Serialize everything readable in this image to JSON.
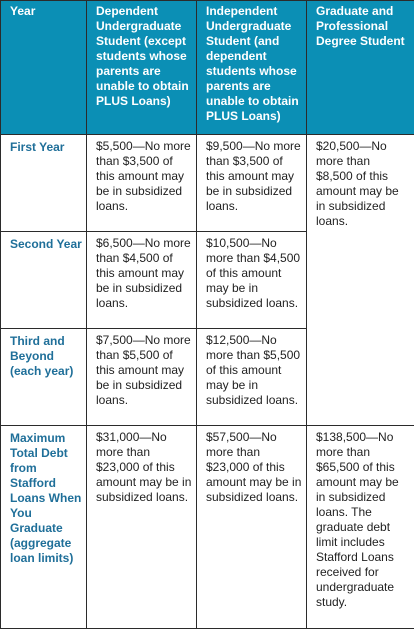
{
  "headers": {
    "year": "Year",
    "dependent": "Dependent Undergraduate Student (except students whose parents are unable to obtain PLUS Loans)",
    "independent": "Independent Undergraduate Student (and dependent students whose parents are unable to obtain PLUS Loans)",
    "graduate": "Graduate and Professional Degree Student"
  },
  "rows": [
    {
      "label": "First Year",
      "dependent": "$5,500—No more than $3,500 of this amount may be in subsidized loans.",
      "independent": "$9,500—No more than $3,500 of this amount may be in subsidized loans."
    },
    {
      "label": "Second Year",
      "dependent": "$6,500—No more than $4,500 of this amount may be in subsidized loans.",
      "independent": "$10,500—No more than $4,500 of this amount may be in subsidized loans."
    },
    {
      "label": "Third and Beyond (each year)",
      "dependent": "$7,500—No more than $5,500 of this amount may be in subsidized loans.",
      "independent": "$12,500—No more than $5,500 of this amount may be in subsidized loans."
    },
    {
      "label": "Maximum Total Debt from Stafford Loans When You Graduate (aggregate loan limits)",
      "dependent": "$31,000—No more than $23,000 of this amount may be in subsidized loans.",
      "independent": "$57,500—No more than $23,000 of this amount may be in subsidized loans.",
      "graduate": "$138,500—No more than $65,500 of this amount may be in subsidized loans. The graduate debt limit includes Stafford Loans received for undergraduate study."
    }
  ],
  "graduate_annual": "$20,500—No more than $8,500 of this amount may be in subsidized loans.",
  "colors": {
    "header_bg": "#0b8fb5",
    "header_text": "#ffffff",
    "row_label": "#1f6f99",
    "body_text": "#222222",
    "border": "#2b2b2b"
  }
}
